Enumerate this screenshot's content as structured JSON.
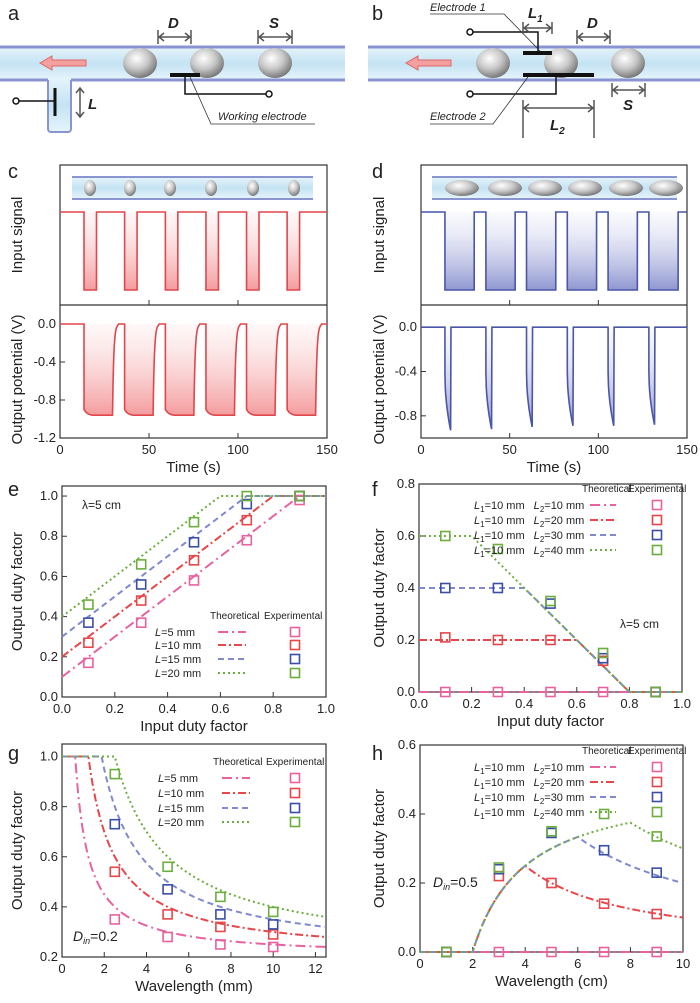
{
  "panels": {
    "a": {
      "label": "a",
      "dim_D": "D",
      "dim_S": "S",
      "dim_L": "L",
      "working_electrode": "Working electrode"
    },
    "b": {
      "label": "b",
      "electrode_1": "Electrode 1",
      "electrode_2": "Electrode 2",
      "dim_L1": "L",
      "dim_L1_sub": "1",
      "dim_L2": "L",
      "dim_L2_sub": "2",
      "dim_D": "D",
      "dim_S": "S"
    },
    "c": {
      "label": "c"
    },
    "d": {
      "label": "d"
    },
    "e": {
      "label": "e"
    },
    "f": {
      "label": "f"
    },
    "g": {
      "label": "g"
    },
    "h": {
      "label": "h"
    }
  },
  "colors": {
    "c_wave": "#e0474c",
    "d_wave": "#4a56a8",
    "pink": "#e8629f",
    "red": "#e5474b",
    "blue": "#3a4ea6",
    "blue_line": "#7f8ad0",
    "green": "#6cae3e",
    "tube_fill": "#cfe8f5",
    "tube_edge": "#8a94d0",
    "arrow": "#f08a8a"
  },
  "chart_data": [
    {
      "id": "c",
      "type": "line",
      "xlabel": "Time (s)",
      "ylabel_top": "Input signal",
      "ylabel_bottom": "Output potential (V)",
      "xlim": [
        0,
        150
      ],
      "xticks": [
        0,
        50,
        100,
        150
      ],
      "ylim_bottom": [
        -1.2,
        0.2
      ],
      "yticks_bottom": [
        0.0,
        -0.4,
        -0.8,
        -1.2
      ],
      "ytick_labels_bottom": [
        "0.0",
        "-0.4",
        "-0.8",
        "-1.2"
      ],
      "input_pulse_starts_s": [
        13.5,
        36.3,
        59.2,
        82,
        104.8,
        127.6
      ],
      "input_pulse_width_s": 7,
      "output_low_start_V": -0.9,
      "output_low_end_V": -0.96,
      "output_low_duration_s": 16
    },
    {
      "id": "d",
      "type": "line",
      "xlabel": "Time (s)",
      "ylabel_top": "Input signal",
      "ylabel_bottom": "Output potential (V)",
      "xlim": [
        0,
        150
      ],
      "xticks": [
        0,
        50,
        100,
        150
      ],
      "ylim_bottom": [
        -1.0,
        0.2
      ],
      "yticks_bottom": [
        0.0,
        -0.4,
        -0.8
      ],
      "ytick_labels_bottom": [
        "0.0",
        "-0.4",
        "-0.8"
      ],
      "input_pulse_starts_s": [
        13.5,
        36.6,
        59.5,
        82.5,
        105.5,
        128.5
      ],
      "input_pulse_width_s": 16.5,
      "output_spike_min_V": [
        -0.93,
        -0.92,
        -0.9,
        -0.89,
        -0.89,
        -0.88
      ],
      "output_spike_width_s": 3.2
    },
    {
      "id": "e",
      "type": "scatter",
      "xlabel": "Input duty factor",
      "ylabel": "Output duty factor",
      "xlim": [
        0,
        1
      ],
      "ylim": [
        0,
        1.05
      ],
      "xticks": [
        0,
        0.2,
        0.4,
        0.6,
        0.8,
        1.0
      ],
      "xtick_labels": [
        "0.0",
        "0.2",
        "0.4",
        "0.6",
        "0.8",
        "1.0"
      ],
      "yticks": [
        0,
        0.2,
        0.4,
        0.6,
        0.8,
        1.0
      ],
      "ytick_labels": [
        "0.0",
        "0.2",
        "0.4",
        "0.6",
        "0.8",
        "1.0"
      ],
      "annotation": "λ=5 cm",
      "legend": {
        "theoretical": "Theoretical",
        "experimental": "Experimental",
        "placement": "bottom-right"
      },
      "model": "min(1, x + L/λ)",
      "lambda_mm": 50,
      "x": [
        0.1,
        0.3,
        0.5,
        0.7,
        0.9
      ],
      "series": [
        {
          "name": "L=5 mm",
          "sym": "L",
          "rest": "=5 mm",
          "L": 5,
          "color": "pink",
          "values": [
            0.17,
            0.37,
            0.58,
            0.78,
            0.98
          ]
        },
        {
          "name": "L=10 mm",
          "sym": "L",
          "rest": "=10 mm",
          "L": 10,
          "color": "red",
          "values": [
            0.27,
            0.48,
            0.68,
            0.88,
            1.0
          ]
        },
        {
          "name": "L=15 mm",
          "sym": "L",
          "rest": "=15 mm",
          "L": 15,
          "color": "blue",
          "values": [
            0.37,
            0.56,
            0.77,
            0.96,
            1.0
          ]
        },
        {
          "name": "L=20 mm",
          "sym": "L",
          "rest": "=20 mm",
          "L": 20,
          "color": "green",
          "values": [
            0.46,
            0.66,
            0.87,
            1.0,
            1.0
          ]
        }
      ]
    },
    {
      "id": "f",
      "type": "scatter",
      "xlabel": "Input duty factor",
      "ylabel": "Output duty factor",
      "xlim": [
        0,
        1
      ],
      "ylim": [
        0,
        0.8
      ],
      "xticks": [
        0,
        0.2,
        0.4,
        0.6,
        0.8,
        1.0
      ],
      "xtick_labels": [
        "0.0",
        "0.2",
        "0.4",
        "0.6",
        "0.8",
        "1.0"
      ],
      "yticks": [
        0,
        0.2,
        0.4,
        0.6,
        0.8
      ],
      "ytick_labels": [
        "0.0",
        "0.2",
        "0.4",
        "0.6",
        "0.8"
      ],
      "annotation": "λ=5 cm",
      "legend": {
        "theoretical": "Theoretical",
        "experimental": "Experimental",
        "placement": "top-right"
      },
      "model": "max(0, min((L2-L1)/λ, 1 - L1/λ - x))",
      "lambda_mm": 50,
      "L1_mm": 10,
      "x": [
        0.1,
        0.3,
        0.5,
        0.7,
        0.9
      ],
      "series": [
        {
          "name": "L1=10 mm L2=10 mm",
          "l1": "=10 mm",
          "l2": "=10 mm",
          "L2": 10,
          "color": "pink",
          "values": [
            0,
            0,
            0,
            0,
            0
          ]
        },
        {
          "name": "L1=10 mm L2=20 mm",
          "l1": "=10 mm",
          "l2": "=20 mm",
          "L2": 20,
          "color": "red",
          "values": [
            0.21,
            0.2,
            0.2,
            0.12,
            0
          ]
        },
        {
          "name": "L1=10 mm L2=30 mm",
          "l1": "=10 mm",
          "l2": "=30 mm",
          "L2": 30,
          "color": "blue",
          "values": [
            0.4,
            0.4,
            0.34,
            0.13,
            0
          ]
        },
        {
          "name": "L1=10 mm L2=40 mm",
          "l1": "=10 mm",
          "l2": "=40 mm",
          "L2": 40,
          "color": "green",
          "values": [
            0.6,
            0.55,
            0.35,
            0.15,
            0
          ]
        }
      ]
    },
    {
      "id": "g",
      "type": "scatter",
      "xlabel": "Wavelength (mm)",
      "ylabel": "Output duty factor",
      "xlim": [
        0,
        12.5
      ],
      "ylim": [
        0.2,
        1.05
      ],
      "xticks": [
        0,
        2,
        4,
        6,
        8,
        10,
        12
      ],
      "xtick_labels": [
        "0",
        "2",
        "4",
        "6",
        "8",
        "10",
        "12"
      ],
      "yticks": [
        0.2,
        0.4,
        0.6,
        0.8,
        1.0
      ],
      "ytick_labels": [
        "0.2",
        "0.4",
        "0.6",
        "0.8",
        "1.0"
      ],
      "annotation_sym": "D",
      "annotation_sub": "in",
      "annotation_rest": "=0.2",
      "legend": {
        "theoretical": "Theoretical",
        "experimental": "Experimental",
        "placement": "top-right"
      },
      "model": "min(1, Din + 0.1·L/λ)",
      "din": 0.2,
      "k": 0.1,
      "x": [
        2.5,
        5,
        7.5,
        10
      ],
      "series": [
        {
          "name": "L=5 mm",
          "sym": "L",
          "rest": "=5 mm",
          "L": 5,
          "color": "pink",
          "values": [
            0.35,
            0.28,
            0.25,
            0.24
          ]
        },
        {
          "name": "L=10 mm",
          "sym": "L",
          "rest": "=10 mm",
          "L": 10,
          "color": "red",
          "values": [
            0.54,
            0.37,
            0.32,
            0.29
          ]
        },
        {
          "name": "L=15 mm",
          "sym": "L",
          "rest": "=15 mm",
          "L": 15,
          "color": "blue",
          "values": [
            0.73,
            0.47,
            0.37,
            0.33
          ]
        },
        {
          "name": "L=20 mm",
          "sym": "L",
          "rest": "=20 mm",
          "L": 20,
          "color": "green",
          "values": [
            0.93,
            0.56,
            0.44,
            0.38
          ]
        }
      ]
    },
    {
      "id": "h",
      "type": "scatter",
      "xlabel": "Wavelength (cm)",
      "ylabel": "Output duty factor",
      "xlim": [
        0,
        10
      ],
      "ylim": [
        0,
        0.6
      ],
      "xticks": [
        0,
        2,
        4,
        6,
        8,
        10
      ],
      "xtick_labels": [
        "0",
        "2",
        "4",
        "6",
        "8",
        "10"
      ],
      "yticks": [
        0,
        0.2,
        0.4,
        0.6
      ],
      "ytick_labels": [
        "0.0",
        "0.2",
        "0.4",
        "0.6"
      ],
      "annotation_sym": "D",
      "annotation_sub": "in",
      "annotation_rest": "=0.5",
      "legend": {
        "theoretical": "Theoretical",
        "experimental": "Experimental",
        "placement": "top-right"
      },
      "model": "max(0, min(Din - L1/λ, (L2-L1)/λ))",
      "din": 0.5,
      "L1_cm": 1,
      "x": [
        1,
        3,
        5,
        7,
        9
      ],
      "series": [
        {
          "name": "L1=10 mm L2=10 mm",
          "l1": "=10 mm",
          "l2": "=10 mm",
          "L2": 1,
          "color": "pink",
          "values": [
            0,
            0,
            0,
            0,
            0
          ]
        },
        {
          "name": "L1=10 mm L2=20 mm",
          "l1": "=10 mm",
          "l2": "=20 mm",
          "L2": 2,
          "color": "red",
          "values": [
            0,
            0.22,
            0.2,
            0.14,
            0.11
          ]
        },
        {
          "name": "L1=10 mm L2=30 mm",
          "l1": "=10 mm",
          "l2": "=30 mm",
          "L2": 3,
          "color": "blue",
          "values": [
            0,
            0.24,
            0.345,
            0.295,
            0.23
          ]
        },
        {
          "name": "L1=10 mm L2=40 mm",
          "l1": "=10 mm",
          "l2": "=40 mm",
          "L2": 4,
          "color": "green",
          "values": [
            0,
            0.245,
            0.35,
            0.4,
            0.335
          ]
        }
      ]
    }
  ]
}
